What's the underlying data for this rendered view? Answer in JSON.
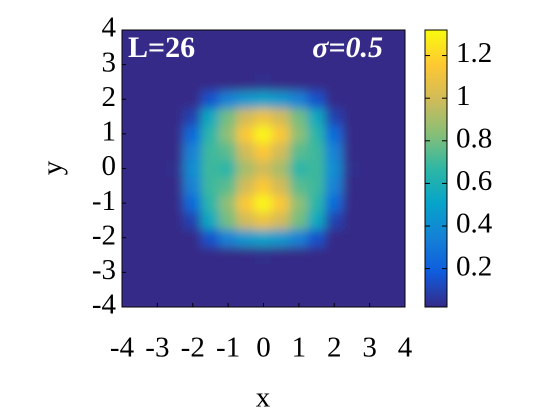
{
  "chart_data": {
    "type": "heatmap",
    "x_label": "x",
    "y_label": "y",
    "annotations": [
      "L=26",
      "σ=0.5"
    ],
    "x": [
      -4,
      -3.5,
      -3,
      -2.5,
      -2,
      -1.5,
      -1,
      -0.5,
      0,
      0.5,
      1,
      1.5,
      2,
      2.5,
      3,
      3.5,
      4
    ],
    "y": [
      -4,
      -3.5,
      -3,
      -2.5,
      -2,
      -1.5,
      -1,
      -0.5,
      0,
      0.5,
      1,
      1.5,
      2,
      2.5,
      3,
      3.5,
      4
    ],
    "z": [
      [
        0.02,
        0.02,
        0.02,
        0.02,
        0.02,
        0.02,
        0.02,
        0.02,
        0.02,
        0.02,
        0.02,
        0.02,
        0.02,
        0.02,
        0.02,
        0.02,
        0.02
      ],
      [
        0.02,
        0.02,
        0.02,
        0.02,
        0.02,
        0.02,
        0.02,
        0.02,
        0.02,
        0.02,
        0.02,
        0.02,
        0.02,
        0.02,
        0.02,
        0.02,
        0.02
      ],
      [
        0.02,
        0.02,
        0.02,
        0.02,
        0.02,
        0.02,
        0.02,
        0.02,
        0.02,
        0.02,
        0.02,
        0.02,
        0.02,
        0.02,
        0.02,
        0.02,
        0.02
      ],
      [
        0.02,
        0.02,
        0.02,
        0.02,
        0.02,
        0.02,
        0.02,
        0.02,
        0.03,
        0.02,
        0.02,
        0.02,
        0.02,
        0.02,
        0.02,
        0.02,
        0.02
      ],
      [
        0.02,
        0.02,
        0.02,
        0.02,
        0.02,
        0.15,
        0.35,
        0.45,
        0.5,
        0.45,
        0.35,
        0.15,
        0.02,
        0.02,
        0.02,
        0.02,
        0.02
      ],
      [
        0.02,
        0.02,
        0.02,
        0.02,
        0.1,
        0.55,
        0.8,
        1.0,
        1.1,
        1.0,
        0.8,
        0.55,
        0.1,
        0.02,
        0.02,
        0.02,
        0.02
      ],
      [
        0.02,
        0.02,
        0.02,
        0.02,
        0.25,
        0.65,
        0.85,
        1.15,
        1.3,
        1.15,
        0.85,
        0.65,
        0.25,
        0.02,
        0.02,
        0.02,
        0.02
      ],
      [
        0.02,
        0.02,
        0.02,
        0.02,
        0.35,
        0.7,
        0.75,
        1.0,
        1.15,
        1.0,
        0.75,
        0.7,
        0.35,
        0.02,
        0.02,
        0.02,
        0.02
      ],
      [
        0.02,
        0.02,
        0.02,
        0.03,
        0.4,
        0.7,
        0.65,
        0.9,
        1.0,
        0.9,
        0.65,
        0.7,
        0.4,
        0.03,
        0.02,
        0.02,
        0.02
      ],
      [
        0.02,
        0.02,
        0.02,
        0.02,
        0.35,
        0.7,
        0.75,
        1.0,
        1.15,
        1.0,
        0.75,
        0.7,
        0.35,
        0.02,
        0.02,
        0.02,
        0.02
      ],
      [
        0.02,
        0.02,
        0.02,
        0.02,
        0.25,
        0.65,
        0.85,
        1.15,
        1.3,
        1.15,
        0.85,
        0.65,
        0.25,
        0.02,
        0.02,
        0.02,
        0.02
      ],
      [
        0.02,
        0.02,
        0.02,
        0.02,
        0.1,
        0.55,
        0.8,
        1.0,
        1.1,
        1.0,
        0.8,
        0.55,
        0.1,
        0.02,
        0.02,
        0.02,
        0.02
      ],
      [
        0.02,
        0.02,
        0.02,
        0.02,
        0.02,
        0.15,
        0.35,
        0.45,
        0.5,
        0.45,
        0.35,
        0.15,
        0.02,
        0.02,
        0.02,
        0.02,
        0.02
      ],
      [
        0.02,
        0.02,
        0.02,
        0.02,
        0.02,
        0.02,
        0.02,
        0.02,
        0.03,
        0.02,
        0.02,
        0.02,
        0.02,
        0.02,
        0.02,
        0.02,
        0.02
      ],
      [
        0.02,
        0.02,
        0.02,
        0.02,
        0.02,
        0.02,
        0.02,
        0.02,
        0.02,
        0.02,
        0.02,
        0.02,
        0.02,
        0.02,
        0.02,
        0.02,
        0.02
      ],
      [
        0.02,
        0.02,
        0.02,
        0.02,
        0.02,
        0.02,
        0.02,
        0.02,
        0.02,
        0.02,
        0.02,
        0.02,
        0.02,
        0.02,
        0.02,
        0.02,
        0.02
      ],
      [
        0.02,
        0.02,
        0.02,
        0.02,
        0.02,
        0.02,
        0.02,
        0.02,
        0.02,
        0.02,
        0.02,
        0.02,
        0.02,
        0.02,
        0.02,
        0.02,
        0.02
      ]
    ],
    "xlim": [
      -4,
      4
    ],
    "ylim": [
      -4,
      4
    ],
    "xticks": [
      -4,
      -3,
      -2,
      -1,
      0,
      1,
      2,
      3,
      4
    ],
    "yticks": [
      -4,
      -3,
      -2,
      -1,
      0,
      1,
      2,
      3,
      4
    ],
    "clim": [
      0.02,
      1.32
    ],
    "cticks": [
      0.2,
      0.4,
      0.6,
      0.8,
      1,
      1.2
    ],
    "colormap": [
      "#352a87",
      "#0f5cdd",
      "#1481d6",
      "#06a4ca",
      "#2eb7a4",
      "#87bf77",
      "#d1bb59",
      "#fec832",
      "#f9fb0e"
    ]
  }
}
